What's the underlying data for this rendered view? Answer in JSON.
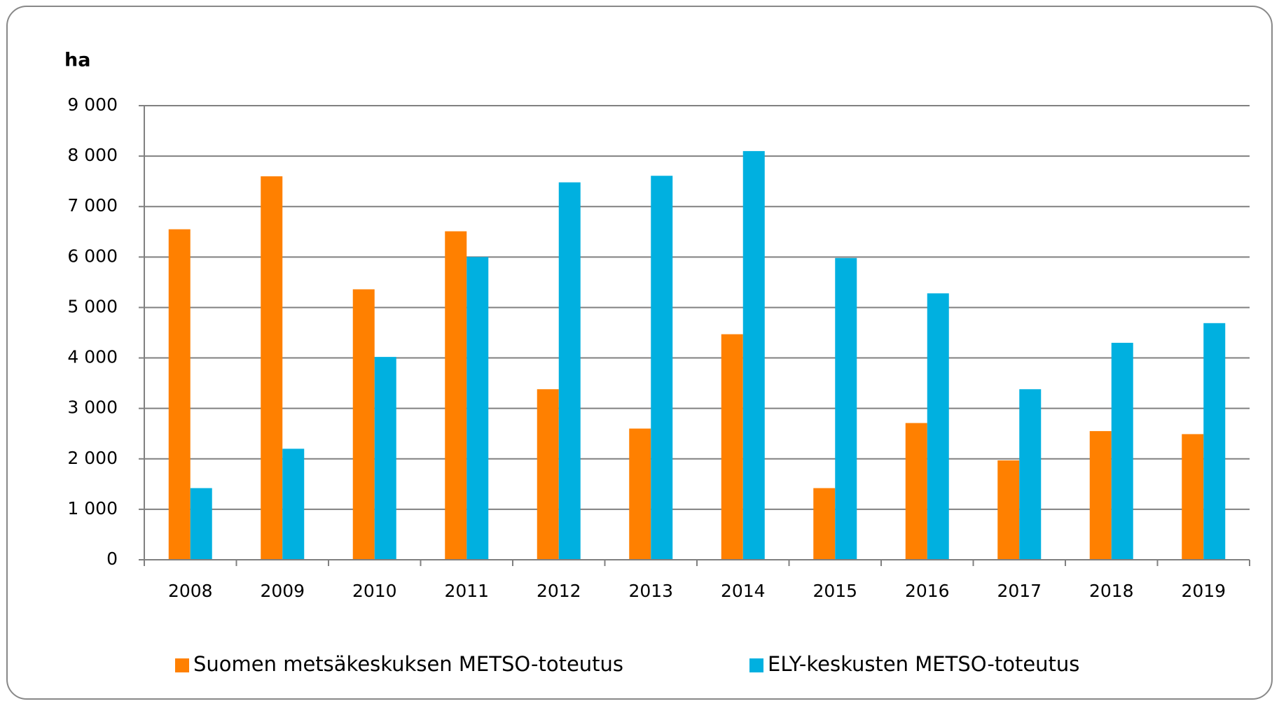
{
  "chart_data": {
    "type": "bar",
    "y_label": "ha",
    "categories": [
      "2008",
      "2009",
      "2010",
      "2011",
      "2012",
      "2013",
      "2014",
      "2015",
      "2016",
      "2017",
      "2018",
      "2019"
    ],
    "series": [
      {
        "name": "Suomen metsäkeskuksen METSO-toteutus",
        "color": "#ff8000",
        "values": [
          6550,
          7600,
          5360,
          6510,
          3380,
          2600,
          4470,
          1420,
          2710,
          1970,
          2550,
          2490
        ]
      },
      {
        "name": "ELY-keskusten METSO-toteutus",
        "color": "#00b0e0",
        "values": [
          1420,
          2200,
          4020,
          6000,
          7480,
          7610,
          8100,
          5980,
          5280,
          3380,
          4300,
          4690
        ]
      }
    ],
    "ylim": [
      0,
      9000
    ],
    "yticks": [
      0,
      {
        "value": 1000,
        "label": "1 000"
      },
      {
        "value": 2000,
        "label": "2 000"
      },
      {
        "value": 3000,
        "label": "3 000"
      },
      {
        "value": 4000,
        "label": "4 000"
      },
      {
        "value": 5000,
        "label": "5 000"
      },
      {
        "value": 6000,
        "label": "6 000"
      },
      {
        "value": 7000,
        "label": "7 000"
      },
      {
        "value": 8000,
        "label": "8 000"
      },
      {
        "value": 9000,
        "label": "9 000"
      }
    ],
    "grid": true,
    "legend": "bottom"
  }
}
